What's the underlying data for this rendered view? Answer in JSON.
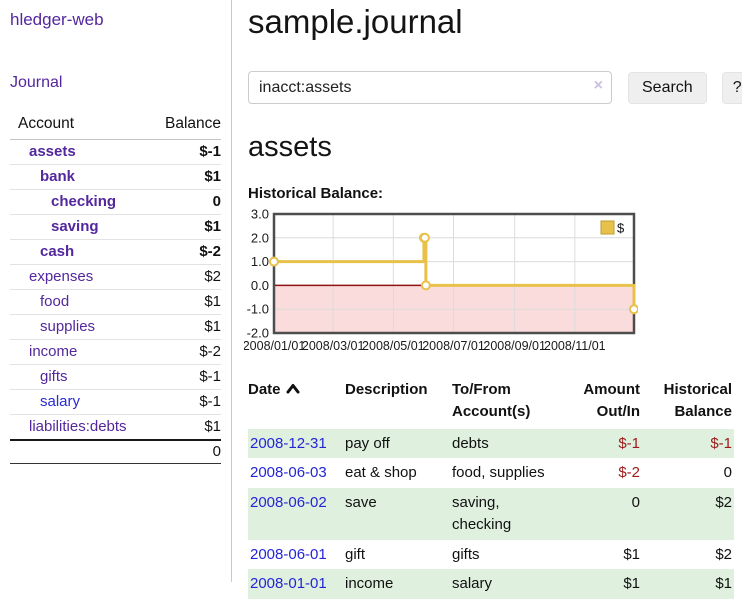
{
  "app": {
    "title": "hledger-web"
  },
  "sidebar": {
    "journal_link": "Journal",
    "table": {
      "account_header": "Account",
      "balance_header": "Balance"
    },
    "accounts": [
      {
        "name": "assets",
        "indent": 1,
        "bold": true,
        "link_color": "purple",
        "balance": "$-1",
        "balance_style": "neg-strong"
      },
      {
        "name": "bank",
        "indent": 2,
        "bold": true,
        "link_color": "purple",
        "balance": "$1",
        "balance_style": "pos"
      },
      {
        "name": "checking",
        "indent": 3,
        "bold": true,
        "link_color": "purple",
        "balance": "0",
        "balance_style": "pos"
      },
      {
        "name": "saving",
        "indent": 3,
        "bold": true,
        "link_color": "purple",
        "balance": "$1",
        "balance_style": "pos"
      },
      {
        "name": "cash",
        "indent": 2,
        "bold": true,
        "link_color": "purple",
        "balance": "$-2",
        "balance_style": "neg-strong"
      },
      {
        "name": "expenses",
        "indent": 1,
        "bold": false,
        "link_color": "purple",
        "balance": "$2",
        "balance_style": "pos"
      },
      {
        "name": "food",
        "indent": 2,
        "bold": false,
        "link_color": "purple",
        "balance": "$1",
        "balance_style": "pos"
      },
      {
        "name": "supplies",
        "indent": 2,
        "bold": false,
        "link_color": "purple",
        "balance": "$1",
        "balance_style": "pos"
      },
      {
        "name": "income",
        "indent": 1,
        "bold": false,
        "link_color": "purple",
        "balance": "$-2",
        "balance_style": "neg-soft"
      },
      {
        "name": "gifts",
        "indent": 2,
        "bold": false,
        "link_color": "purple",
        "balance": "$-1",
        "balance_style": "neg-soft"
      },
      {
        "name": "salary",
        "indent": 2,
        "bold": false,
        "link_color": "blue",
        "balance": "$-1",
        "balance_style": "neg-soft"
      },
      {
        "name": "liabilities:debts",
        "indent": 1,
        "bold": false,
        "link_color": "purple",
        "balance": "$1",
        "balance_style": "pos"
      }
    ],
    "total": "0"
  },
  "header": {
    "title": "sample.journal"
  },
  "search": {
    "value": "inacct:assets",
    "clear_icon": "×",
    "button_label": "Search",
    "help_label": "?"
  },
  "account_page": {
    "title": "assets",
    "chart_label": "Historical Balance:"
  },
  "chart_data": {
    "type": "line",
    "step": true,
    "title": "Historical Balance",
    "legend": {
      "label": "$",
      "position": "top-right",
      "swatch_color": "#e8c14a"
    },
    "line_color": "#e8c14a",
    "marker": {
      "fill": "#ffffff",
      "stroke": "#e8c14a"
    },
    "negative_region_color": "#fbdcdc",
    "zero_line_color": "#8f1212",
    "grid_color": "#dcdcdc",
    "border_color": "#4d4d4d",
    "x_range_days": [
      0,
      365
    ],
    "ylim": [
      -2,
      3
    ],
    "y_ticks": [
      3.0,
      2.0,
      1.0,
      0.0,
      -1.0,
      -2.0
    ],
    "x_ticks": [
      {
        "day": 0,
        "label": "2008/01/01"
      },
      {
        "day": 60,
        "label": "2008/03/01"
      },
      {
        "day": 121,
        "label": "2008/05/01"
      },
      {
        "day": 182,
        "label": "2008/07/01"
      },
      {
        "day": 244,
        "label": "2008/09/01"
      },
      {
        "day": 305,
        "label": "2008/11/01"
      }
    ],
    "series": [
      {
        "name": "$",
        "points": [
          {
            "date": "2008-01-01",
            "day": 0,
            "value": 1
          },
          {
            "date": "2008-06-01",
            "day": 152,
            "value": 2
          },
          {
            "date": "2008-06-02",
            "day": 153,
            "value": 2
          },
          {
            "date": "2008-06-03",
            "day": 154,
            "value": 0
          },
          {
            "date": "2008-12-31",
            "day": 365,
            "value": -1
          }
        ]
      }
    ]
  },
  "register": {
    "headers": {
      "date": "Date",
      "description": "Description",
      "accounts": "To/From Account(s)",
      "amount": "Amount Out/In",
      "balance": "Historical Balance"
    },
    "rows": [
      {
        "date": "2008-12-31",
        "description": "pay off",
        "accounts": "debts",
        "amount": "$-1",
        "amount_style": "neg",
        "balance": "$-1",
        "balance_style": "neg",
        "shaded": true
      },
      {
        "date": "2008-06-03",
        "description": "eat & shop",
        "accounts": "food, supplies",
        "amount": "$-2",
        "amount_style": "neg",
        "balance": "0",
        "balance_style": "pos",
        "shaded": false
      },
      {
        "date": "2008-06-02",
        "description": "save",
        "accounts": "saving, checking",
        "amount": "0",
        "amount_style": "pos",
        "balance": "$2",
        "balance_style": "pos",
        "shaded": true
      },
      {
        "date": "2008-06-01",
        "description": "gift",
        "accounts": "gifts",
        "amount": "$1",
        "amount_style": "pos",
        "balance": "$2",
        "balance_style": "pos",
        "shaded": false
      },
      {
        "date": "2008-01-01",
        "description": "income",
        "accounts": "salary",
        "amount": "$1",
        "amount_style": "pos",
        "balance": "$1",
        "balance_style": "pos",
        "shaded": true
      }
    ]
  }
}
